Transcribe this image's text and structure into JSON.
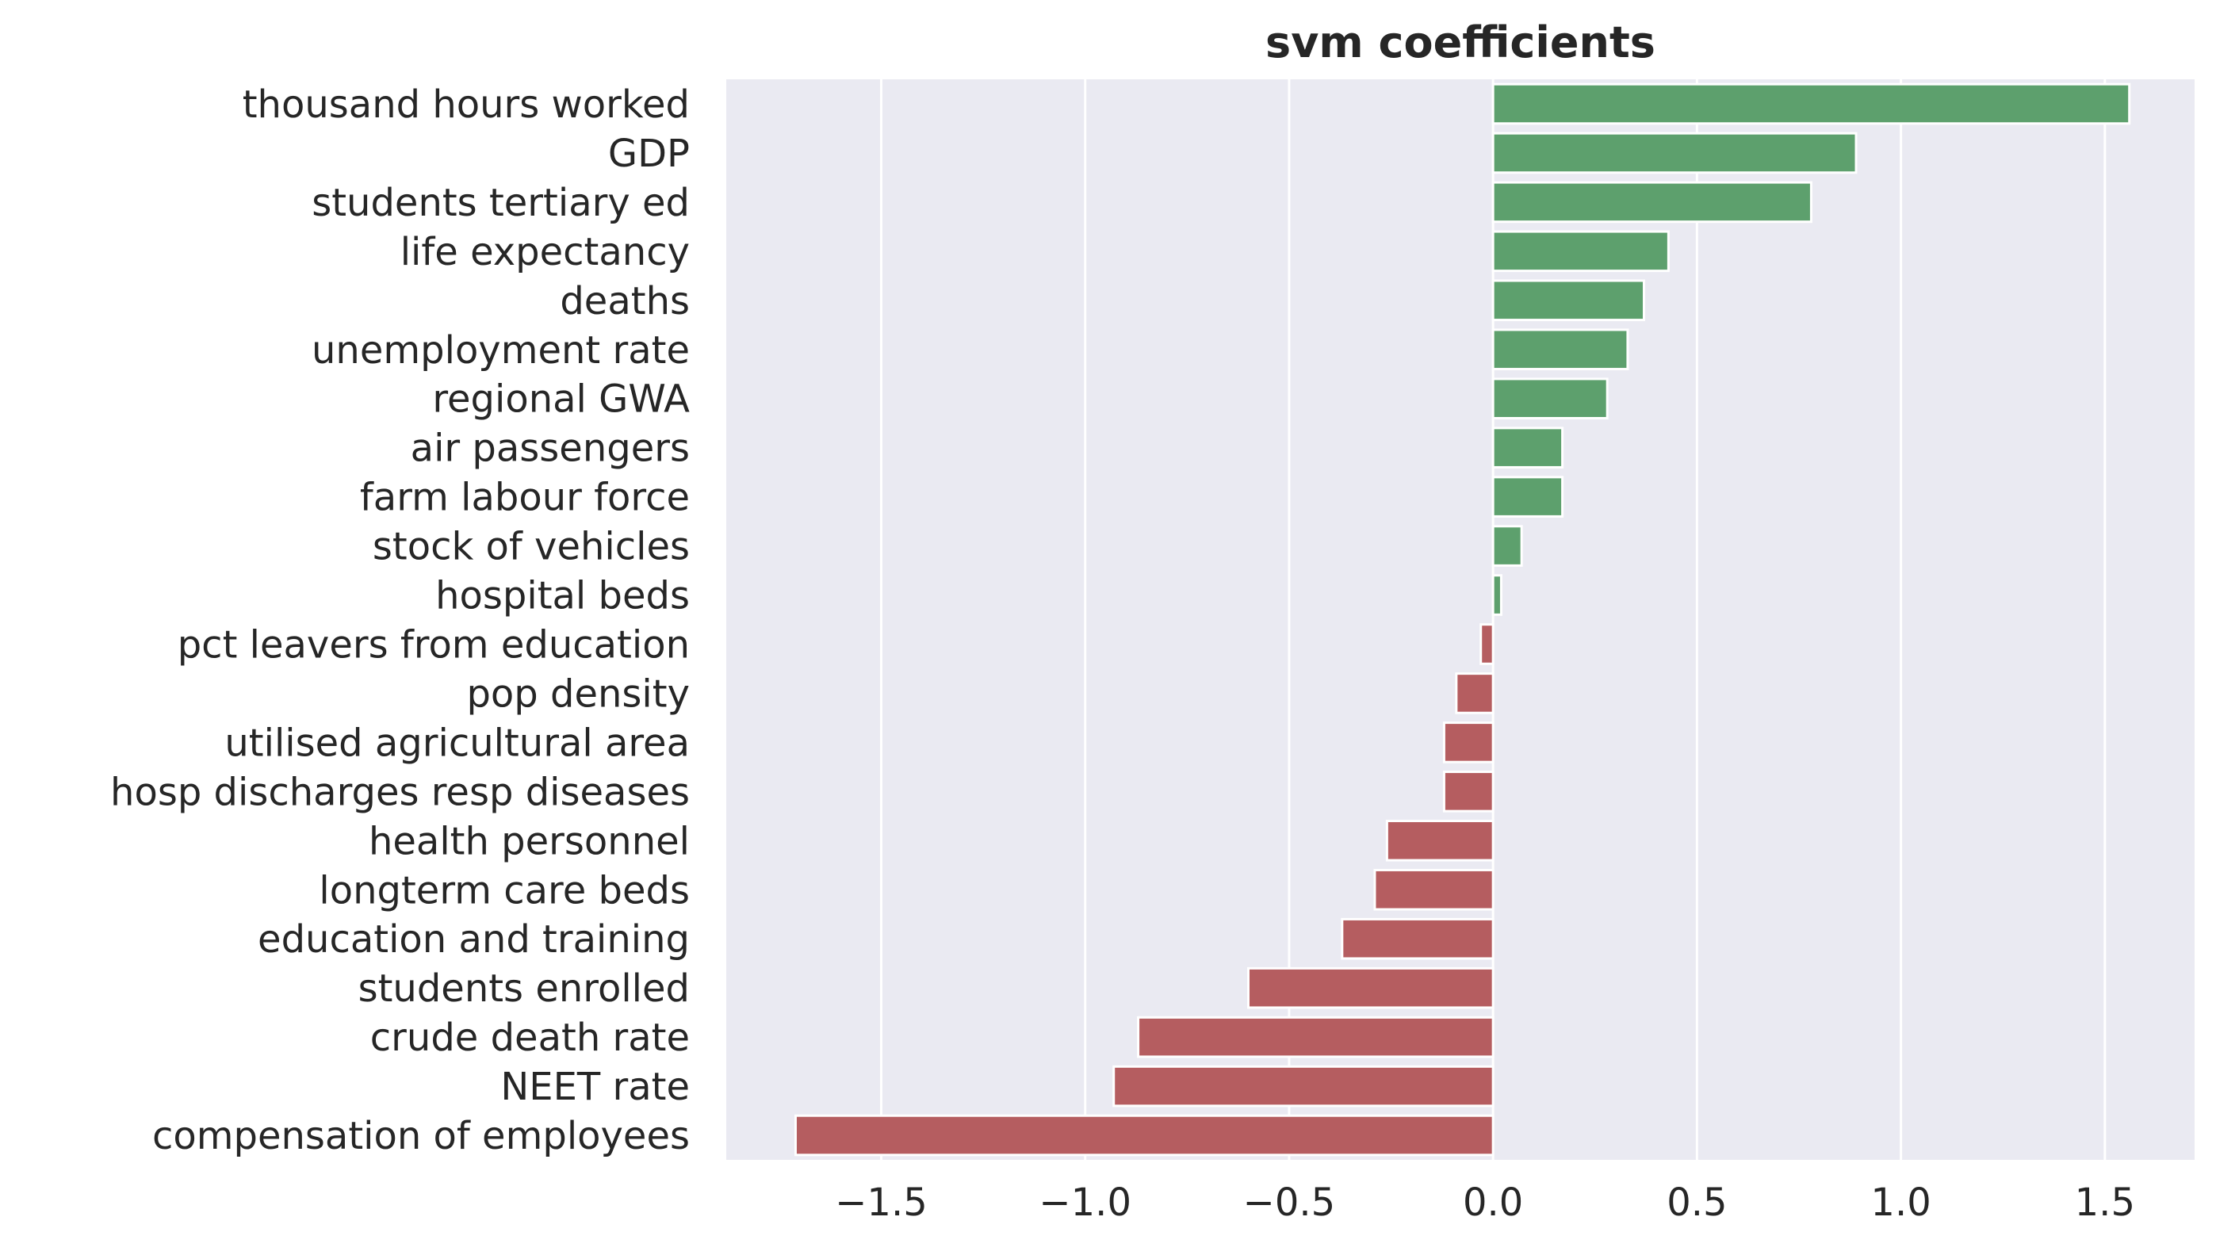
{
  "chart_data": {
    "type": "bar",
    "orientation": "horizontal",
    "title": "svm coefficients",
    "xlabel": "",
    "ylabel": "",
    "xlim": [
      -1.88,
      1.72
    ],
    "xticks": [
      -1.5,
      -1.0,
      -0.5,
      0.0,
      0.5,
      1.0,
      1.5
    ],
    "xtick_labels": [
      "−1.5",
      "−1.0",
      "−0.5",
      "0.0",
      "0.5",
      "1.0",
      "1.5"
    ],
    "grid": true,
    "categories": [
      "thousand hours worked",
      "GDP",
      "students tertiary ed",
      "life expectancy",
      "deaths",
      "unemployment rate",
      "regional GWA",
      "air passengers",
      "farm labour force",
      "stock of vehicles",
      "hospital beds",
      "pct leavers from education",
      "pop density",
      "utilised agricultural area",
      "hosp discharges resp diseases",
      "health personnel",
      "longterm care beds",
      "education and training",
      "students enrolled",
      "crude death rate",
      "NEET rate",
      "compensation of employees"
    ],
    "values": [
      1.56,
      0.89,
      0.78,
      0.43,
      0.37,
      0.33,
      0.28,
      0.17,
      0.17,
      0.07,
      0.02,
      -0.03,
      -0.09,
      -0.12,
      -0.12,
      -0.26,
      -0.29,
      -0.37,
      -0.6,
      -0.87,
      -0.93,
      -1.71
    ],
    "colors": {
      "positive": "#5da06d",
      "negative": "#b55d60",
      "plot_background": "#eaeaf2",
      "grid": "#ffffff",
      "text": "#262626"
    }
  }
}
